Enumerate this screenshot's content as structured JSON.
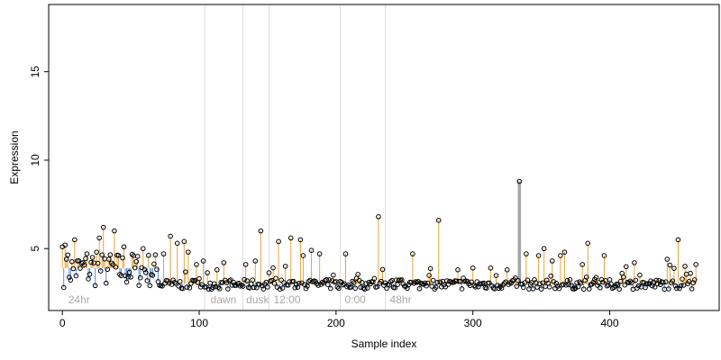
{
  "chart_data": {
    "type": "scatter",
    "xlabel": "Sample index",
    "ylabel": "Expression",
    "xlim": [
      -10,
      480
    ],
    "ylim": [
      1.5,
      18.8
    ],
    "baseline": 3.0,
    "high_baseline_range": [
      0,
      70
    ],
    "high_baseline": 3.9,
    "x_ticks": [
      0,
      100,
      200,
      300,
      400
    ],
    "y_ticks": [
      5,
      10,
      15
    ],
    "grid": false,
    "vertical_lines": [
      104,
      132,
      151,
      203,
      236
    ],
    "section_labels": [
      {
        "label": "24hr",
        "x": 3
      },
      {
        "label": "dawn",
        "x": 107
      },
      {
        "label": "dusk",
        "x": 133
      },
      {
        "label": "12:00",
        "x": 153
      },
      {
        "label": "0:00",
        "x": 205
      },
      {
        "label": "48hr",
        "x": 238
      }
    ],
    "colors": {
      "up": "#e8a33a",
      "down": "#5b8fd6",
      "highlight": "#a6a6a6",
      "vline": "#dddddd"
    },
    "highlight": {
      "x": 334,
      "y": 8.8
    },
    "peaks": [
      [
        0,
        5.1
      ],
      [
        2,
        5.2
      ],
      [
        3,
        4.4
      ],
      [
        9,
        5.5
      ],
      [
        15,
        4.2
      ],
      [
        18,
        4.7
      ],
      [
        22,
        4.5
      ],
      [
        25,
        4.8
      ],
      [
        27,
        5.6
      ],
      [
        30,
        6.2
      ],
      [
        34,
        4.4
      ],
      [
        38,
        6.0
      ],
      [
        45,
        5.1
      ],
      [
        52,
        4.6
      ],
      [
        59,
        5.0
      ],
      [
        74,
        4.7
      ],
      [
        79,
        5.7
      ],
      [
        84,
        5.3
      ],
      [
        89,
        5.4
      ],
      [
        92,
        4.8
      ],
      [
        98,
        4.1
      ],
      [
        103,
        4.3
      ],
      [
        113,
        3.8
      ],
      [
        118,
        4.2
      ],
      [
        134,
        4.1
      ],
      [
        141,
        4.3
      ],
      [
        145,
        6.0
      ],
      [
        158,
        5.4
      ],
      [
        163,
        4.0
      ],
      [
        167,
        5.6
      ],
      [
        174,
        5.5
      ],
      [
        176,
        4.6
      ],
      [
        182,
        4.9
      ],
      [
        188,
        4.7
      ],
      [
        198,
        3.5
      ],
      [
        207,
        4.7
      ],
      [
        231,
        6.8
      ],
      [
        256,
        4.7
      ],
      [
        275,
        6.6
      ],
      [
        289,
        3.8
      ],
      [
        300,
        3.9
      ],
      [
        313,
        3.9
      ],
      [
        325,
        3.8
      ],
      [
        339,
        4.7
      ],
      [
        348,
        4.6
      ],
      [
        352,
        5.0
      ],
      [
        358,
        4.3
      ],
      [
        364,
        4.6
      ],
      [
        367,
        4.8
      ],
      [
        380,
        4.1
      ],
      [
        384,
        5.3
      ],
      [
        396,
        4.6
      ],
      [
        409,
        3.6
      ],
      [
        418,
        4.2
      ],
      [
        422,
        3.5
      ],
      [
        442,
        4.4
      ],
      [
        450,
        5.5
      ],
      [
        455,
        4.0
      ],
      [
        459,
        3.6
      ],
      [
        463,
        4.1
      ]
    ]
  }
}
